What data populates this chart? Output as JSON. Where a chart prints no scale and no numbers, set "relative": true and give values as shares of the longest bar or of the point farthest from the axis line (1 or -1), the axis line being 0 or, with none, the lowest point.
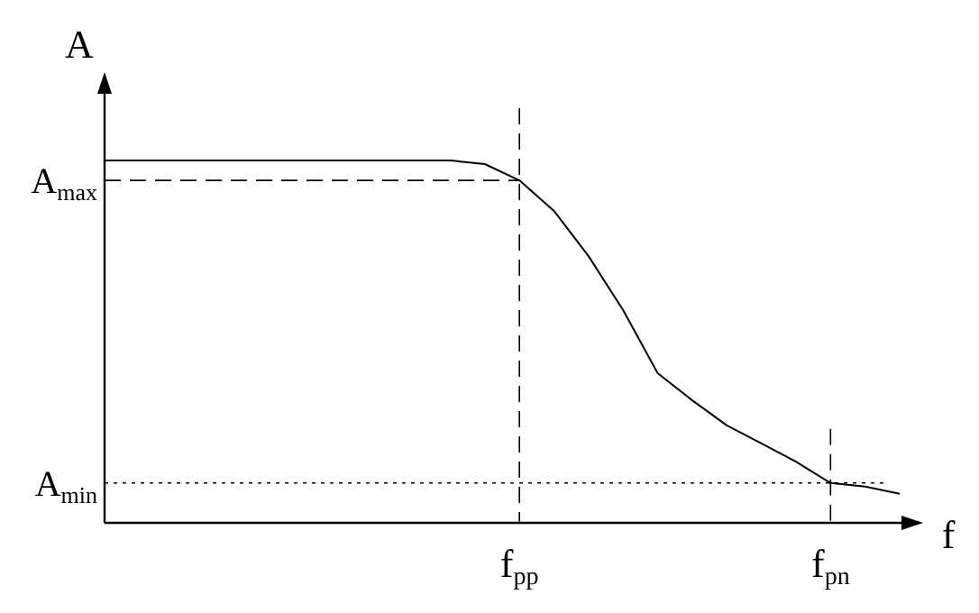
{
  "chart_data": {
    "type": "line",
    "relative": true,
    "xlabel": "f",
    "ylabel": "A",
    "marker": "none",
    "line_style": "solid",
    "categories": [
      null,
      null,
      null,
      null,
      null,
      null,
      null,
      null,
      null,
      null,
      null,
      null,
      "f$_{pp}$",
      null,
      null,
      null,
      null,
      null,
      null,
      null,
      null,
      "f$_{pn}$",
      null,
      null
    ],
    "series": [
      {
        "color": "#000000",
        "values": [
          1,
          1,
          1,
          1,
          1,
          1,
          1,
          1,
          1,
          1,
          1,
          0.99,
          0.945,
          0.861,
          0.736,
          0.587,
          0.413,
          0.338,
          0.269,
          0.219,
          0.169,
          0.11,
          0.1,
          0.08
        ]
      }
    ],
    "ref_lines": [
      {
        "axis": "y",
        "value": 0.945,
        "label": "A$_{max}$",
        "line_style": "dashed",
        "color": "#000000"
      },
      {
        "axis": "y",
        "value": 0.11,
        "label": "A$_{min}$",
        "line_style": "dotted",
        "color": "#000000"
      },
      {
        "axis": "x",
        "value": "f$_{pp}$",
        "line_style": "dashed",
        "color": "#000000"
      },
      {
        "axis": "x",
        "value": "f$_{pn}$",
        "line_style": "dashed",
        "color": "#000000"
      }
    ]
  }
}
